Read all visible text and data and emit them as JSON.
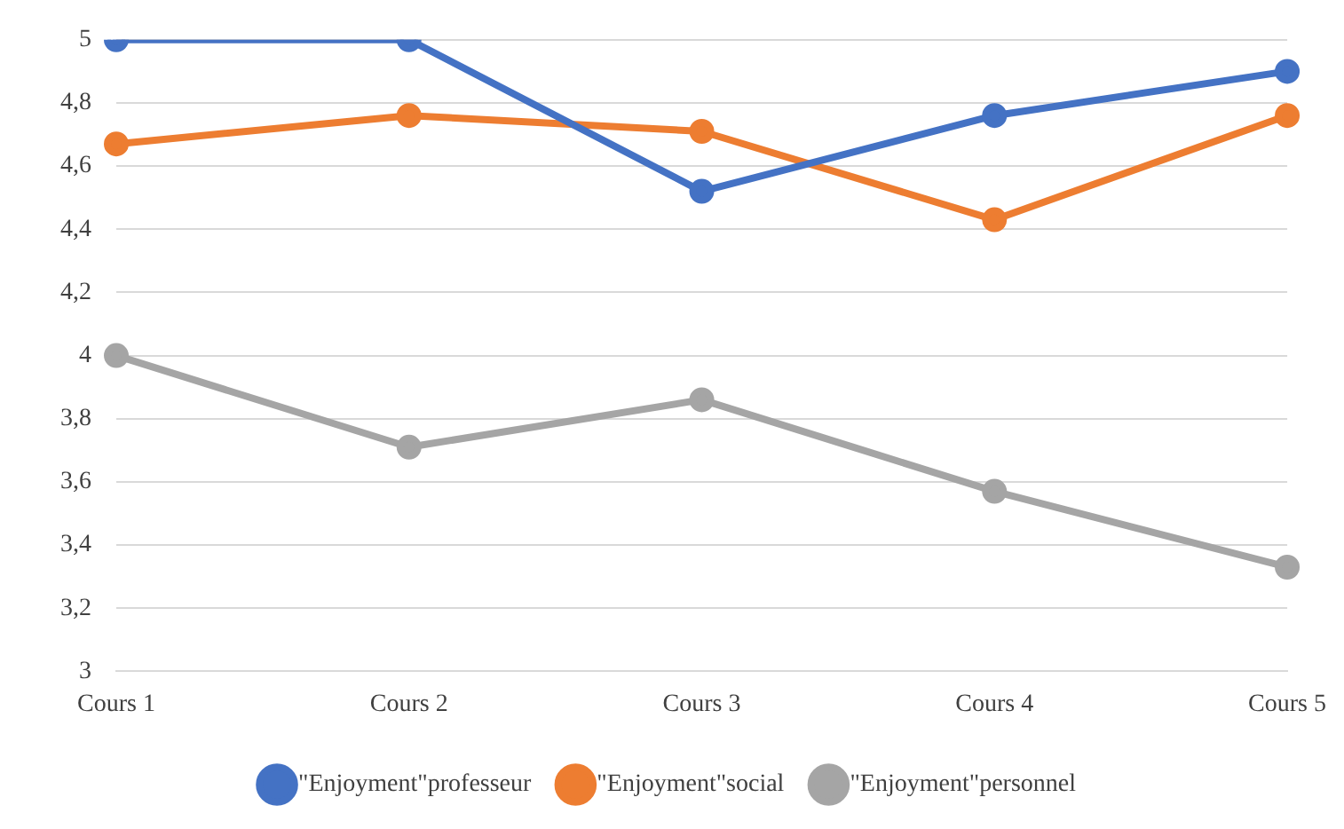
{
  "chart_data": {
    "type": "line",
    "categories": [
      "Cours 1",
      "Cours 2",
      "Cours 3",
      "Cours 4",
      "Cours 5"
    ],
    "series": [
      {
        "name": "\"Enjoyment\"professeur",
        "color": "#4472c4",
        "values": [
          5,
          5,
          4.52,
          4.76,
          4.9
        ]
      },
      {
        "name": "\"Enjoyment\"social",
        "color": "#ed7d31",
        "values": [
          4.67,
          4.76,
          4.71,
          4.43,
          4.76
        ]
      },
      {
        "name": "\"Enjoyment\"personnel",
        "color": "#a5a5a5",
        "values": [
          4,
          3.71,
          3.86,
          3.57,
          3.33
        ]
      }
    ],
    "ylim": [
      3,
      5
    ],
    "yticks": [
      {
        "value": 3,
        "label": "3"
      },
      {
        "value": 3.2,
        "label": "3,2"
      },
      {
        "value": 3.4,
        "label": "3,4"
      },
      {
        "value": 3.6,
        "label": "3,6"
      },
      {
        "value": 3.8,
        "label": "3,8"
      },
      {
        "value": 4,
        "label": "4"
      },
      {
        "value": 4.2,
        "label": "4,2"
      },
      {
        "value": 4.4,
        "label": "4,4"
      },
      {
        "value": 4.6,
        "label": "4,6"
      },
      {
        "value": 4.8,
        "label": "4,8"
      },
      {
        "value": 5,
        "label": "5"
      }
    ],
    "grid": "y",
    "legend": "bottom",
    "marker": "circle",
    "line_style": "solid"
  }
}
